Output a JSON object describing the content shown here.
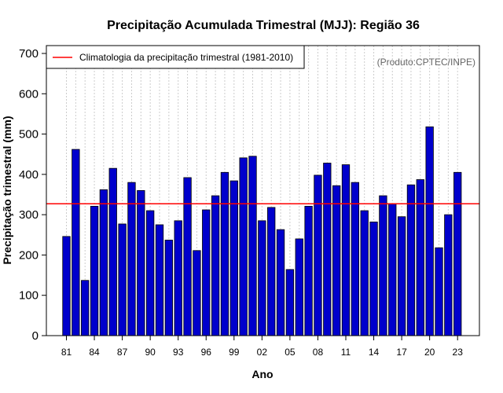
{
  "chart_data": {
    "type": "bar",
    "title": "Precipitação Acumulada Trimestral (MJJ): Região 36",
    "xlabel": "Ano",
    "ylabel": "Precipitação trimestral (mm)",
    "ylim": [
      0,
      700
    ],
    "yticks": [
      0,
      100,
      200,
      300,
      400,
      500,
      600,
      700
    ],
    "categories": [
      "81",
      "82",
      "83",
      "84",
      "85",
      "86",
      "87",
      "88",
      "89",
      "90",
      "91",
      "92",
      "93",
      "94",
      "95",
      "96",
      "97",
      "98",
      "99",
      "00",
      "01",
      "02",
      "03",
      "04",
      "05",
      "06",
      "07",
      "08",
      "09",
      "10",
      "11",
      "12",
      "13",
      "14",
      "15",
      "16",
      "17",
      "18",
      "19",
      "20",
      "21",
      "22",
      "23"
    ],
    "xtick_labels": [
      "81",
      "84",
      "87",
      "90",
      "93",
      "96",
      "99",
      "02",
      "05",
      "08",
      "11",
      "14",
      "17",
      "20",
      "23"
    ],
    "values": [
      246,
      462,
      137,
      321,
      362,
      415,
      277,
      380,
      360,
      310,
      275,
      237,
      285,
      392,
      211,
      312,
      347,
      405,
      384,
      441,
      445,
      285,
      318,
      263,
      164,
      240,
      321,
      398,
      428,
      372,
      424,
      380,
      310,
      282,
      347,
      327,
      295,
      374,
      387,
      518,
      218,
      300,
      405
    ],
    "climatology": 327,
    "legend": "Climatologia da precipitação trimestral (1981-2010)",
    "legend_position": "top-left",
    "credit": "(Produto:CPTEC/INPE)",
    "grid": true,
    "colors": {
      "bar": "#0000cc",
      "climatology": "#ff0000",
      "grid": "#cccccc"
    }
  }
}
